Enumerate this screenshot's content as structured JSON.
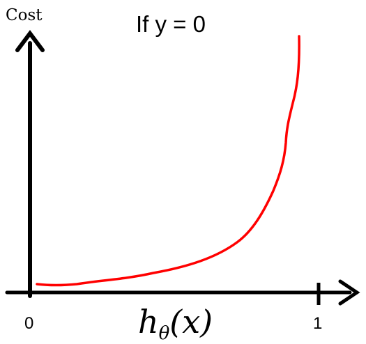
{
  "labels": {
    "y_axis": "Cost",
    "title": "If y = 0",
    "x_axis_prefix": "h",
    "x_axis_subscript": "θ",
    "x_axis_suffix": "(x)",
    "tick_0": "0",
    "tick_1": "1"
  },
  "colors": {
    "axis": "#000000",
    "curve": "#ff0000",
    "text": "#000000"
  }
}
